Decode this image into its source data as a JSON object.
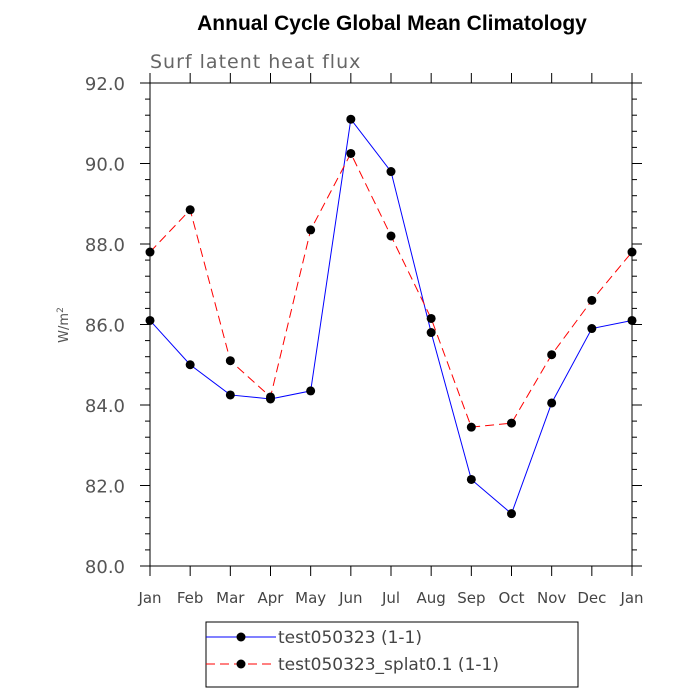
{
  "chart_data": {
    "type": "line",
    "title": "Annual Cycle Global Mean Climatology",
    "subtitle": "Surf latent heat flux",
    "ylabel_main": "W/m",
    "ylabel_sup": "2",
    "xlabel": "",
    "categories": [
      "Jan",
      "Feb",
      "Mar",
      "Apr",
      "May",
      "Jun",
      "Jul",
      "Aug",
      "Sep",
      "Oct",
      "Nov",
      "Dec",
      "Jan"
    ],
    "ylim": [
      80.0,
      92.0
    ],
    "yticks": [
      "80.0",
      "82.0",
      "84.0",
      "86.0",
      "88.0",
      "90.0",
      "92.0"
    ],
    "grid": false,
    "legend_position": "bottom",
    "series": [
      {
        "name": "test050323 (1-1)",
        "color": "#0000ff",
        "dash": "solid",
        "marker": "filled-circle",
        "values": [
          86.1,
          85.0,
          84.25,
          84.15,
          84.35,
          91.1,
          89.8,
          85.8,
          82.15,
          81.3,
          84.05,
          85.9,
          86.1
        ]
      },
      {
        "name": "test050323_splat0.1 (1-1)",
        "color": "#ff0000",
        "dash": "dashed",
        "marker": "filled-circle",
        "values": [
          87.8,
          88.85,
          85.1,
          84.2,
          88.35,
          90.25,
          88.2,
          86.15,
          83.45,
          83.55,
          85.25,
          86.6,
          87.8
        ]
      }
    ]
  }
}
